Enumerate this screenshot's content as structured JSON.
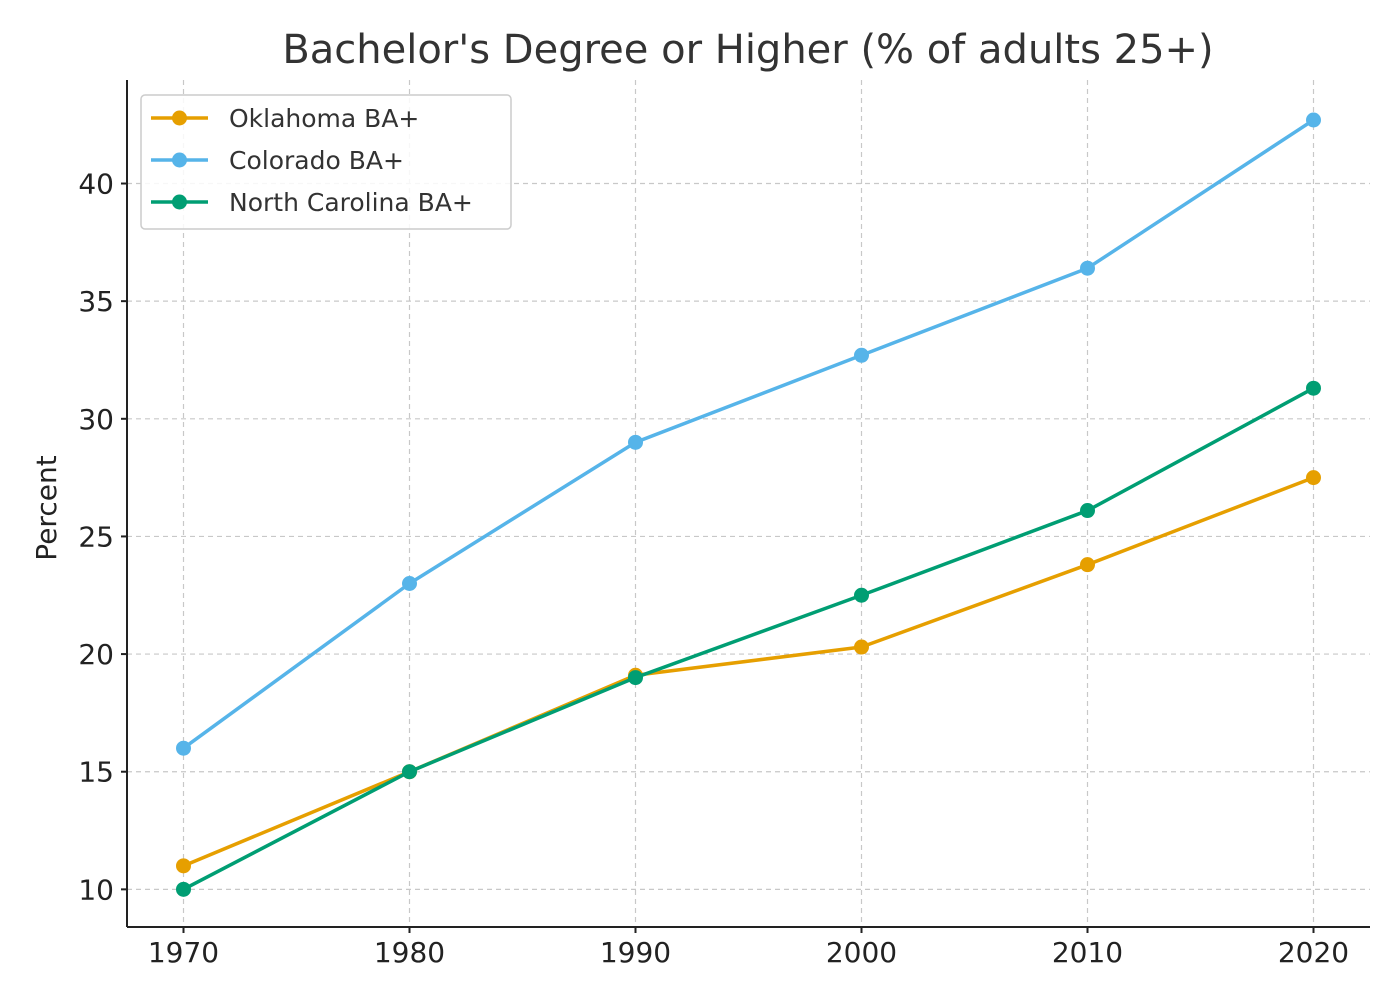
{
  "chart_data": {
    "type": "line",
    "title": "Bachelor's Degree or Higher (% of adults 25+)",
    "xlabel": "",
    "ylabel": "Percent",
    "x": [
      1970,
      1980,
      1990,
      2000,
      2010,
      2020
    ],
    "x_tick_labels": [
      "1970",
      "1980",
      "1990",
      "2000",
      "2010",
      "2020"
    ],
    "y_ticks": [
      10,
      15,
      20,
      25,
      30,
      35,
      40
    ],
    "y_tick_labels": [
      "10",
      "15",
      "20",
      "25",
      "30",
      "35",
      "40"
    ],
    "xlim": [
      1967.5,
      2022.5
    ],
    "ylim": [
      8.4,
      44.4
    ],
    "grid": true,
    "legend_position": "top-left",
    "series": [
      {
        "name": "Oklahoma BA+",
        "color": "#E69F00",
        "values": [
          11.0,
          15.0,
          19.1,
          20.3,
          23.8,
          27.5
        ]
      },
      {
        "name": "Colorado BA+",
        "color": "#56B4E9",
        "values": [
          16.0,
          23.0,
          29.0,
          32.7,
          36.4,
          42.7
        ]
      },
      {
        "name": "North Carolina BA+",
        "color": "#009E73",
        "values": [
          10.0,
          15.0,
          19.0,
          22.5,
          26.1,
          31.3
        ]
      }
    ]
  }
}
